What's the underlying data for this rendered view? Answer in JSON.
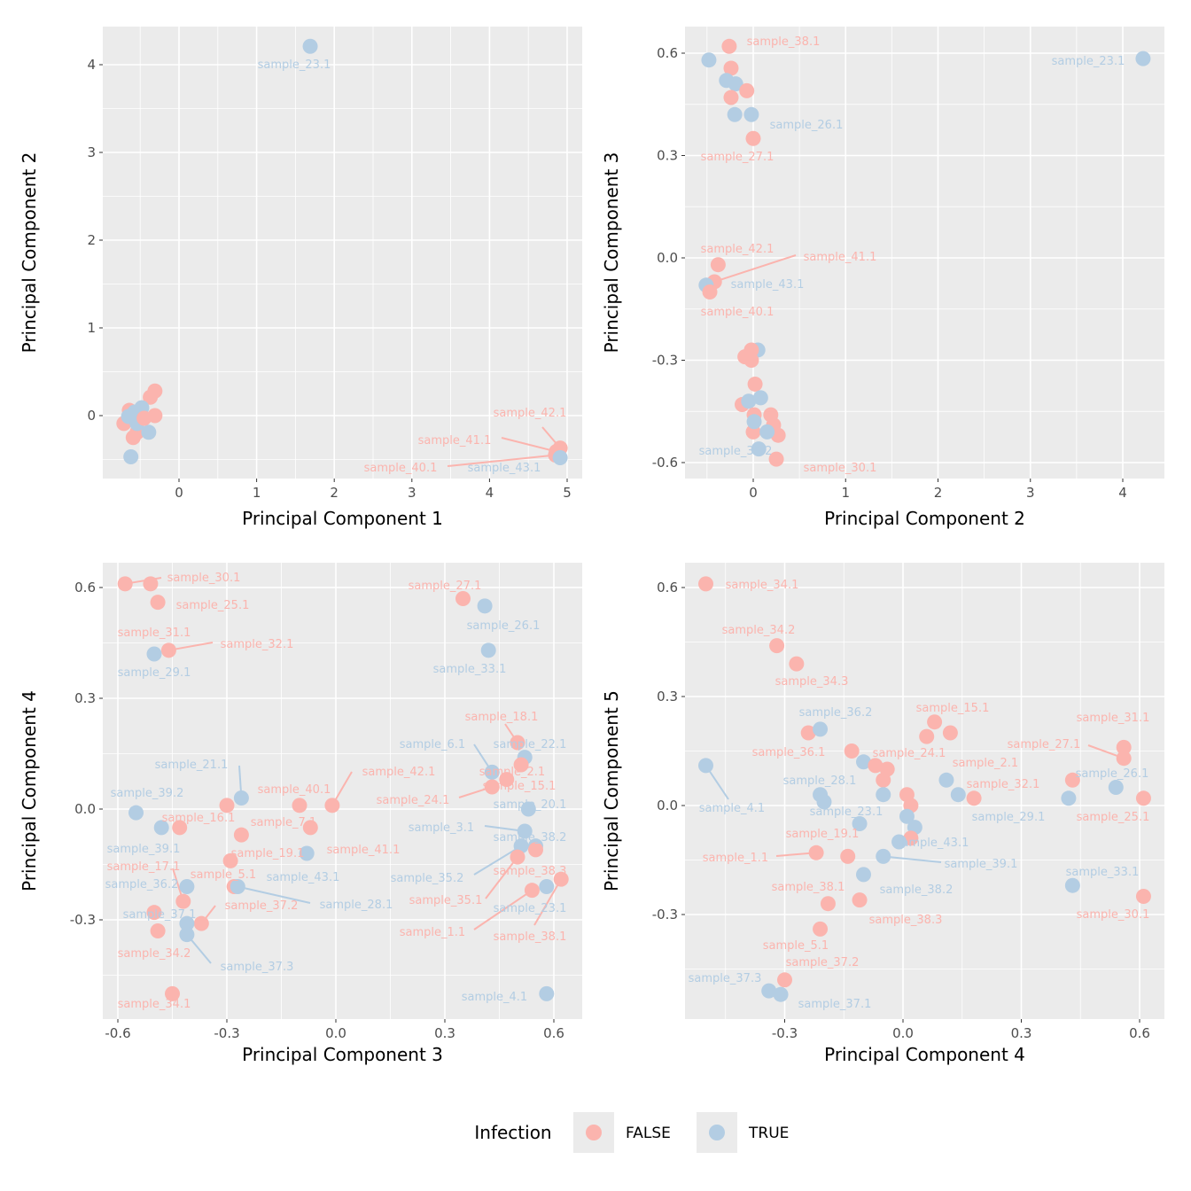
{
  "chart_data": {
    "type": "scatter",
    "colors": {
      "FALSE": "#FBB4AE",
      "TRUE": "#B3CDE3",
      "panel_bg": "#EBEBEB",
      "grid": "#FFFFFF"
    },
    "legend": {
      "title": "Infection",
      "entries": [
        "FALSE",
        "TRUE"
      ],
      "placement": "bottom"
    },
    "panels": [
      {
        "xlabel": "Principal Component 1",
        "ylabel": "Principal Component 2",
        "xticks": [
          0,
          1,
          2,
          3,
          4,
          5
        ],
        "yticks": [
          0,
          1,
          2,
          3,
          4
        ],
        "tick_labels_x": [
          "0",
          "1",
          "2",
          "3",
          "4",
          "5"
        ],
        "tick_labels_y": [
          "0",
          "1",
          "2",
          "3",
          "4"
        ],
        "points": [
          [
            1.69,
            4.21,
            "TRUE",
            "sample_23.1"
          ],
          [
            4.91,
            -0.37,
            "FALSE",
            "sample_42.1"
          ],
          [
            4.86,
            -0.41,
            "FALSE",
            "sample_41.1"
          ],
          [
            4.85,
            -0.45,
            "FALSE",
            "sample_40.1"
          ],
          [
            4.91,
            -0.48,
            "TRUE",
            "sample_43.1"
          ],
          [
            -0.31,
            0.28,
            "FALSE",
            ""
          ],
          [
            -0.37,
            0.21,
            "FALSE",
            ""
          ],
          [
            -0.64,
            0.06,
            "FALSE",
            ""
          ],
          [
            -0.71,
            -0.09,
            "FALSE",
            ""
          ],
          [
            -0.59,
            -0.25,
            "FALSE",
            ""
          ],
          [
            -0.54,
            -0.19,
            "FALSE",
            ""
          ],
          [
            -0.48,
            -0.01,
            "FALSE",
            ""
          ],
          [
            -0.31,
            0.0,
            "FALSE",
            ""
          ],
          [
            -0.62,
            -0.47,
            "TRUE",
            ""
          ],
          [
            -0.39,
            -0.19,
            "TRUE",
            ""
          ],
          [
            -0.57,
            0.04,
            "TRUE",
            ""
          ],
          [
            -0.48,
            0.09,
            "TRUE",
            ""
          ],
          [
            -0.54,
            -0.09,
            "TRUE",
            ""
          ],
          [
            -0.65,
            -0.01,
            "TRUE",
            ""
          ],
          [
            -0.45,
            -0.03,
            "FALSE",
            ""
          ]
        ]
      },
      {
        "xlabel": "Principal Component 2",
        "ylabel": "Principal Component 3",
        "xticks": [
          0,
          1,
          2,
          3,
          4
        ],
        "yticks": [
          -0.6,
          -0.3,
          0,
          0.3,
          0.6
        ],
        "tick_labels_x": [
          "0",
          "1",
          "2",
          "3",
          "4"
        ],
        "tick_labels_y": [
          "-0.6",
          "-0.3",
          "0.0",
          "0.3",
          "0.6"
        ],
        "points": [
          [
            4.22,
            0.584,
            "TRUE",
            "sample_23.1"
          ],
          [
            -0.26,
            0.62,
            "FALSE",
            "sample_38.1"
          ],
          [
            -0.48,
            0.58,
            "TRUE",
            ""
          ],
          [
            -0.24,
            0.556,
            "FALSE",
            ""
          ],
          [
            -0.29,
            0.52,
            "TRUE",
            ""
          ],
          [
            -0.19,
            0.51,
            "TRUE",
            ""
          ],
          [
            -0.07,
            0.49,
            "FALSE",
            ""
          ],
          [
            -0.24,
            0.47,
            "FALSE",
            ""
          ],
          [
            -0.2,
            0.42,
            "TRUE",
            ""
          ],
          [
            -0.02,
            0.42,
            "TRUE",
            "sample_26.1"
          ],
          [
            0.0,
            0.35,
            "FALSE",
            "sample_27.1"
          ],
          [
            -0.38,
            -0.02,
            "FALSE",
            "sample_42.1"
          ],
          [
            -0.42,
            -0.07,
            "FALSE",
            "sample_41.1"
          ],
          [
            -0.51,
            -0.08,
            "TRUE",
            "sample_43.1"
          ],
          [
            -0.47,
            -0.1,
            "FALSE",
            "sample_40.1"
          ],
          [
            0.05,
            -0.27,
            "TRUE",
            ""
          ],
          [
            -0.02,
            -0.27,
            "FALSE",
            ""
          ],
          [
            -0.09,
            -0.29,
            "FALSE",
            ""
          ],
          [
            -0.02,
            -0.3,
            "FALSE",
            ""
          ],
          [
            0.02,
            -0.37,
            "FALSE",
            ""
          ],
          [
            -0.12,
            -0.43,
            "FALSE",
            ""
          ],
          [
            -0.05,
            -0.42,
            "TRUE",
            ""
          ],
          [
            0.08,
            -0.41,
            "TRUE",
            ""
          ],
          [
            0.19,
            -0.46,
            "FALSE",
            ""
          ],
          [
            0.01,
            -0.46,
            "FALSE",
            ""
          ],
          [
            0.22,
            -0.49,
            "FALSE",
            ""
          ],
          [
            0.27,
            -0.52,
            "FALSE",
            ""
          ],
          [
            0.0,
            -0.51,
            "FALSE",
            ""
          ],
          [
            0.15,
            -0.51,
            "TRUE",
            ""
          ],
          [
            0.01,
            -0.48,
            "TRUE",
            ""
          ],
          [
            0.06,
            -0.56,
            "TRUE",
            "sample_35.2"
          ],
          [
            0.25,
            -0.59,
            "FALSE",
            "sample_30.1"
          ]
        ]
      },
      {
        "xlabel": "Principal Component 3",
        "ylabel": "Principal Component 4",
        "xticks": [
          -0.6,
          -0.3,
          0,
          0.3,
          0.6
        ],
        "yticks": [
          -0.3,
          0,
          0.3,
          0.6
        ],
        "tick_labels_x": [
          "-0.6",
          "-0.3",
          "0.0",
          "0.3",
          "0.6"
        ],
        "tick_labels_y": [
          "-0.3",
          "0.0",
          "0.3",
          "0.6"
        ],
        "points": [
          [
            -0.58,
            0.61,
            "FALSE",
            "sample_30.1"
          ],
          [
            -0.51,
            0.61,
            "FALSE",
            "sample_31.1"
          ],
          [
            -0.49,
            0.56,
            "FALSE",
            "sample_25.1"
          ],
          [
            -0.46,
            0.43,
            "FALSE",
            "sample_32.1"
          ],
          [
            -0.5,
            0.42,
            "TRUE",
            "sample_29.1"
          ],
          [
            0.35,
            0.57,
            "FALSE",
            "sample_27.1"
          ],
          [
            0.41,
            0.55,
            "TRUE",
            "sample_26.1"
          ],
          [
            0.42,
            0.43,
            "TRUE",
            "sample_33.1"
          ],
          [
            0.5,
            0.18,
            "FALSE",
            "sample_18.1"
          ],
          [
            0.52,
            0.14,
            "TRUE",
            "sample_22.1"
          ],
          [
            0.51,
            0.12,
            "FALSE",
            "sample_2.1"
          ],
          [
            0.43,
            0.1,
            "TRUE",
            "sample_6.1"
          ],
          [
            0.47,
            0.08,
            "FALSE",
            "sample_15.1"
          ],
          [
            0.43,
            0.06,
            "FALSE",
            "sample_24.1"
          ],
          [
            0.53,
            0.0,
            "TRUE",
            "sample_20.1"
          ],
          [
            0.52,
            -0.06,
            "TRUE",
            "sample_3.1"
          ],
          [
            0.55,
            -0.1,
            "TRUE",
            "sample_38.2"
          ],
          [
            0.51,
            -0.1,
            "TRUE",
            "sample_35.2"
          ],
          [
            0.55,
            -0.11,
            "FALSE",
            "sample_38.3"
          ],
          [
            0.5,
            -0.13,
            "FALSE",
            "sample_35.1"
          ],
          [
            0.54,
            -0.22,
            "FALSE",
            "sample_1.1"
          ],
          [
            0.58,
            -0.21,
            "TRUE",
            "sample_23.1"
          ],
          [
            0.62,
            -0.19,
            "FALSE",
            "sample_38.1"
          ],
          [
            0.58,
            -0.5,
            "TRUE",
            "sample_4.1"
          ],
          [
            -0.55,
            -0.01,
            "TRUE",
            "sample_39.2"
          ],
          [
            -0.48,
            -0.05,
            "TRUE",
            "sample_39.1"
          ],
          [
            -0.43,
            -0.05,
            "FALSE",
            "sample_16.1"
          ],
          [
            -0.3,
            0.01,
            "FALSE",
            ""
          ],
          [
            -0.26,
            0.03,
            "TRUE",
            "sample_21.1"
          ],
          [
            -0.26,
            -0.07,
            "FALSE",
            "sample_7.1"
          ],
          [
            -0.1,
            0.01,
            "FALSE",
            "sample_40.1"
          ],
          [
            -0.01,
            0.01,
            "FALSE",
            "sample_42.1"
          ],
          [
            -0.07,
            -0.05,
            "FALSE",
            "sample_41.1"
          ],
          [
            -0.08,
            -0.12,
            "TRUE",
            "sample_43.1"
          ],
          [
            -0.29,
            -0.14,
            "FALSE",
            "sample_19.1"
          ],
          [
            -0.28,
            -0.21,
            "FALSE",
            "sample_5.1"
          ],
          [
            -0.27,
            -0.21,
            "TRUE",
            "sample_28.1"
          ],
          [
            -0.37,
            -0.31,
            "FALSE",
            "sample_37.2"
          ],
          [
            -0.41,
            -0.21,
            "TRUE",
            "sample_36.2"
          ],
          [
            -0.42,
            -0.25,
            "FALSE",
            "sample_17.1"
          ],
          [
            -0.5,
            -0.28,
            "FALSE",
            ""
          ],
          [
            -0.41,
            -0.31,
            "TRUE",
            "sample_37.1"
          ],
          [
            -0.49,
            -0.33,
            "FALSE",
            "sample_34.2"
          ],
          [
            -0.41,
            -0.34,
            "TRUE",
            "sample_37.3"
          ],
          [
            -0.45,
            -0.5,
            "FALSE",
            "sample_34.1"
          ]
        ]
      },
      {
        "xlabel": "Principal Component 4",
        "ylabel": "Principal Component 5",
        "xticks": [
          -0.3,
          0,
          0.3,
          0.6
        ],
        "yticks": [
          -0.3,
          0,
          0.3,
          0.6
        ],
        "tick_labels_x": [
          "-0.3",
          "0.0",
          "0.3",
          "0.6"
        ],
        "tick_labels_y": [
          "-0.3",
          "0.0",
          "0.3",
          "0.6"
        ],
        "points": [
          [
            -0.5,
            0.61,
            "FALSE",
            "sample_34.1"
          ],
          [
            -0.32,
            0.44,
            "FALSE",
            "sample_34.2"
          ],
          [
            -0.27,
            0.39,
            "FALSE",
            "sample_34.3"
          ],
          [
            -0.5,
            0.11,
            "TRUE",
            "sample_4.1"
          ],
          [
            -0.24,
            0.2,
            "FALSE",
            "sample_36.1"
          ],
          [
            -0.21,
            0.21,
            "TRUE",
            "sample_36.2"
          ],
          [
            -0.13,
            0.15,
            "FALSE",
            ""
          ],
          [
            -0.1,
            0.12,
            "TRUE",
            ""
          ],
          [
            -0.07,
            0.11,
            "FALSE",
            "sample_24.1"
          ],
          [
            -0.04,
            0.1,
            "FALSE",
            ""
          ],
          [
            -0.05,
            0.07,
            "FALSE",
            ""
          ],
          [
            -0.05,
            0.03,
            "TRUE",
            ""
          ],
          [
            -0.21,
            0.03,
            "TRUE",
            "sample_28.1"
          ],
          [
            -0.2,
            0.01,
            "TRUE",
            "sample_23.1"
          ],
          [
            0.01,
            0.03,
            "FALSE",
            ""
          ],
          [
            0.02,
            0.0,
            "FALSE",
            ""
          ],
          [
            0.01,
            -0.03,
            "TRUE",
            ""
          ],
          [
            0.03,
            -0.06,
            "TRUE",
            ""
          ],
          [
            0.02,
            -0.09,
            "FALSE",
            ""
          ],
          [
            -0.01,
            -0.1,
            "TRUE",
            "sample_43.1"
          ],
          [
            -0.11,
            -0.05,
            "TRUE",
            ""
          ],
          [
            -0.22,
            -0.13,
            "FALSE",
            "sample_1.1"
          ],
          [
            -0.14,
            -0.14,
            "FALSE",
            "sample_19.1"
          ],
          [
            -0.05,
            -0.14,
            "TRUE",
            "sample_39.1"
          ],
          [
            -0.1,
            -0.19,
            "TRUE",
            "sample_38.2"
          ],
          [
            -0.19,
            -0.27,
            "FALSE",
            "sample_38.1"
          ],
          [
            -0.11,
            -0.26,
            "FALSE",
            "sample_38.3"
          ],
          [
            -0.21,
            -0.34,
            "FALSE",
            "sample_5.1"
          ],
          [
            0.08,
            0.23,
            "FALSE",
            "sample_15.1"
          ],
          [
            0.06,
            0.19,
            "FALSE",
            ""
          ],
          [
            0.12,
            0.2,
            "FALSE",
            "sample_2.1"
          ],
          [
            0.11,
            0.07,
            "TRUE",
            ""
          ],
          [
            0.14,
            0.03,
            "TRUE",
            "sample_29.1"
          ],
          [
            0.18,
            0.02,
            "FALSE",
            "sample_32.1"
          ],
          [
            0.56,
            0.16,
            "FALSE",
            "sample_31.1"
          ],
          [
            0.56,
            0.13,
            "FALSE",
            "sample_27.1"
          ],
          [
            0.43,
            0.07,
            "FALSE",
            ""
          ],
          [
            0.54,
            0.05,
            "TRUE",
            "sample_26.1"
          ],
          [
            0.42,
            0.02,
            "TRUE",
            ""
          ],
          [
            0.61,
            0.02,
            "FALSE",
            "sample_25.1"
          ],
          [
            0.43,
            -0.22,
            "TRUE",
            "sample_33.1"
          ],
          [
            0.61,
            -0.25,
            "FALSE",
            "sample_30.1"
          ],
          [
            -0.3,
            -0.48,
            "FALSE",
            "sample_37.2"
          ],
          [
            -0.34,
            -0.51,
            "TRUE",
            "sample_37.3"
          ],
          [
            -0.31,
            -0.52,
            "TRUE",
            "sample_37.1"
          ]
        ]
      }
    ]
  }
}
